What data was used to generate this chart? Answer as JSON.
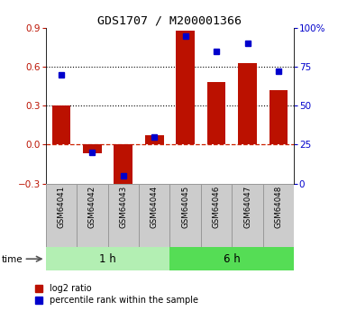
{
  "title": "GDS1707 / M200001366",
  "categories": [
    "GSM64041",
    "GSM64042",
    "GSM64043",
    "GSM64044",
    "GSM64045",
    "GSM64046",
    "GSM64047",
    "GSM64048"
  ],
  "log2_ratio": [
    0.3,
    -0.07,
    -0.38,
    0.07,
    0.88,
    0.48,
    0.63,
    0.42
  ],
  "percentile_rank": [
    70,
    20,
    5,
    30,
    95,
    85,
    90,
    72
  ],
  "group_labels": [
    "1 h",
    "6 h"
  ],
  "group_sizes": [
    4,
    4
  ],
  "group_colors": [
    "#b3efb3",
    "#55dd55"
  ],
  "bar_color": "#bb1100",
  "dot_color": "#0000cc",
  "ylim_left": [
    -0.3,
    0.9
  ],
  "ylim_right": [
    0,
    100
  ],
  "yticks_left": [
    -0.3,
    0.0,
    0.3,
    0.6,
    0.9
  ],
  "yticks_right": [
    0,
    25,
    50,
    75,
    100
  ],
  "hline_zero_color": "#cc2200",
  "hline_dotted_color": "#000000",
  "plot_bg_color": "#ffffff",
  "time_label": "time",
  "legend_entries": [
    "log2 ratio",
    "percentile rank within the sample"
  ],
  "cat_box_color": "#cccccc",
  "cat_box_edge": "#999999",
  "cat_bg_color": "#e8e8e8"
}
